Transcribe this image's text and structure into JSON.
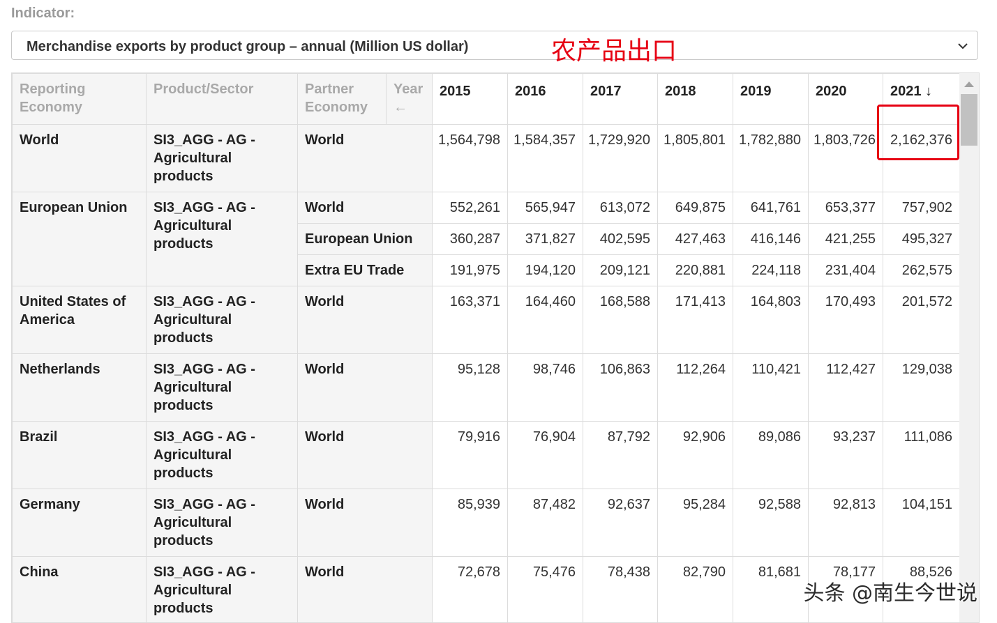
{
  "indicator_label": "Indicator:",
  "indicator_value": "Merchandise exports by product group – annual (Million US dollar)",
  "annotation": "农产品出口",
  "watermark": "头条 @南生今世说",
  "highlight_color": "#e60012",
  "table": {
    "headers": {
      "reporting_economy": "Reporting Economy",
      "product_sector": "Product/Sector",
      "partner_economy": "Partner Economy",
      "year": "Year",
      "year_arrow": "←",
      "years": [
        "2015",
        "2016",
        "2017",
        "2018",
        "2019",
        "2020",
        "2021 ↓"
      ]
    },
    "groups": [
      {
        "economy": "World",
        "product": "SI3_AGG - AG - Agricultural products",
        "rows": [
          {
            "partner": "World",
            "values": [
              "1,564,798",
              "1,584,357",
              "1,729,920",
              "1,805,801",
              "1,782,880",
              "1,803,726",
              "2,162,376"
            ]
          }
        ]
      },
      {
        "economy": "European Union",
        "product": "SI3_AGG - AG - Agricultural products",
        "rows": [
          {
            "partner": "World",
            "values": [
              "552,261",
              "565,947",
              "613,072",
              "649,875",
              "641,761",
              "653,377",
              "757,902"
            ]
          },
          {
            "partner": "European Union",
            "values": [
              "360,287",
              "371,827",
              "402,595",
              "427,463",
              "416,146",
              "421,255",
              "495,327"
            ]
          },
          {
            "partner": "Extra EU Trade",
            "values": [
              "191,975",
              "194,120",
              "209,121",
              "220,881",
              "224,118",
              "231,404",
              "262,575"
            ]
          }
        ]
      },
      {
        "economy": "United States of America",
        "product": "SI3_AGG - AG - Agricultural products",
        "rows": [
          {
            "partner": "World",
            "values": [
              "163,371",
              "164,460",
              "168,588",
              "171,413",
              "164,803",
              "170,493",
              "201,572"
            ]
          }
        ]
      },
      {
        "economy": "Netherlands",
        "product": "SI3_AGG - AG - Agricultural products",
        "rows": [
          {
            "partner": "World",
            "values": [
              "95,128",
              "98,746",
              "106,863",
              "112,264",
              "110,421",
              "112,427",
              "129,038"
            ]
          }
        ]
      },
      {
        "economy": "Brazil",
        "product": "SI3_AGG - AG - Agricultural products",
        "rows": [
          {
            "partner": "World",
            "values": [
              "79,916",
              "76,904",
              "87,792",
              "92,906",
              "89,086",
              "93,237",
              "111,086"
            ]
          }
        ]
      },
      {
        "economy": "Germany",
        "product": "SI3_AGG - AG - Agricultural products",
        "rows": [
          {
            "partner": "World",
            "values": [
              "85,939",
              "87,482",
              "92,637",
              "95,284",
              "92,588",
              "92,813",
              "104,151"
            ]
          }
        ]
      },
      {
        "economy": "China",
        "product": "SI3_AGG - AG - Agricultural products",
        "rows": [
          {
            "partner": "World",
            "values": [
              "72,678",
              "75,476",
              "78,438",
              "82,790",
              "81,681",
              "78,177",
              "88,526"
            ]
          }
        ]
      }
    ]
  }
}
